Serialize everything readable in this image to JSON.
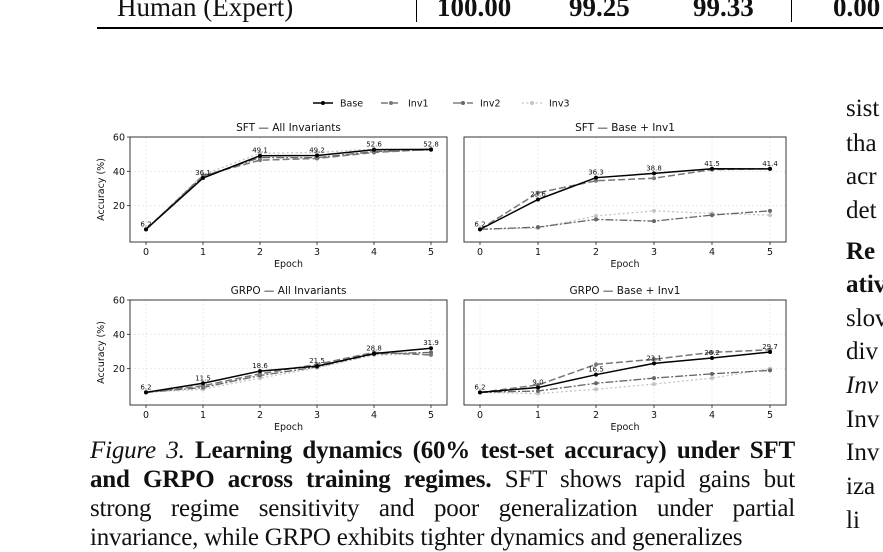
{
  "table_row": {
    "label": "Human (Expert)",
    "values": [
      "100.00",
      "99.25",
      "99.33",
      "0.00"
    ]
  },
  "legend": [
    "Base",
    "Inv1",
    "Inv2",
    "Inv3"
  ],
  "caption": {
    "fig_label": "Figure 3.",
    "bold": "Learning dynamics (60% test-set accuracy) under SFT and GRPO across training regimes.",
    "text": "SFT shows rapid gains but strong regime sensitivity and poor generalization under partial invariance, while GRPO exhibits tighter dynamics and generalizes"
  },
  "right_column": [
    "sist",
    "tha",
    "acr",
    "det",
    "Re",
    "ativ",
    "slov",
    "div",
    "Inv",
    "Inv",
    "Inv",
    "iza",
    "li"
  ],
  "chart_data": [
    {
      "type": "line",
      "title": "SFT — All Invariants",
      "xlabel": "Epoch",
      "ylabel": "Accuracy (%)",
      "x": [
        0,
        1,
        2,
        3,
        4,
        5
      ],
      "xlim": [
        0,
        5
      ],
      "ylim": [
        0,
        60
      ],
      "yticks": [
        20,
        40,
        60
      ],
      "grid": true,
      "series": [
        {
          "name": "Base",
          "values": [
            6.2,
            36.1,
            49.1,
            49.2,
            52.6,
            52.8
          ]
        },
        {
          "name": "Inv1",
          "values": [
            6.2,
            37.5,
            46.5,
            47.5,
            51.0,
            52.8
          ]
        },
        {
          "name": "Inv2",
          "values": [
            6.2,
            37.0,
            48.0,
            48.0,
            51.5,
            52.5
          ]
        },
        {
          "name": "Inv3",
          "values": [
            6.2,
            38.0,
            50.5,
            51.0,
            53.0,
            52.5
          ]
        }
      ],
      "data_labels": [
        "6.2",
        "36.1",
        "49.1",
        "49.2",
        "52.6",
        "52.8"
      ]
    },
    {
      "type": "line",
      "title": "SFT — Base + Inv1",
      "xlabel": "Epoch",
      "ylabel": "",
      "x": [
        0,
        1,
        2,
        3,
        4,
        5
      ],
      "xlim": [
        0,
        5
      ],
      "ylim": [
        0,
        60
      ],
      "yticks": [
        20,
        40,
        60
      ],
      "grid": true,
      "series": [
        {
          "name": "Base",
          "values": [
            6.2,
            23.6,
            36.3,
            38.8,
            41.5,
            41.4
          ]
        },
        {
          "name": "Inv1",
          "values": [
            6.2,
            27.5,
            34.5,
            36.0,
            41.0,
            41.5
          ]
        },
        {
          "name": "Inv2",
          "values": [
            6.2,
            7.5,
            12.0,
            11.0,
            14.5,
            17.0
          ]
        },
        {
          "name": "Inv3",
          "values": [
            6.2,
            7.0,
            14.0,
            17.0,
            15.5,
            14.5
          ]
        }
      ],
      "data_labels": [
        "6.2",
        "23.6",
        "36.3",
        "38.8",
        "41.5",
        "41.4"
      ]
    },
    {
      "type": "line",
      "title": "GRPO — All Invariants",
      "xlabel": "Epoch",
      "ylabel": "Accuracy (%)",
      "x": [
        0,
        1,
        2,
        3,
        4,
        5
      ],
      "xlim": [
        0,
        5
      ],
      "ylim": [
        0,
        60
      ],
      "yticks": [
        20,
        40,
        60
      ],
      "grid": true,
      "series": [
        {
          "name": "Base",
          "values": [
            6.2,
            11.5,
            18.6,
            21.5,
            28.8,
            31.9
          ]
        },
        {
          "name": "Inv1",
          "values": [
            6.2,
            10.0,
            17.0,
            22.5,
            29.5,
            28.0
          ]
        },
        {
          "name": "Inv2",
          "values": [
            6.2,
            9.0,
            16.0,
            21.0,
            28.5,
            29.5
          ]
        },
        {
          "name": "Inv3",
          "values": [
            6.2,
            8.0,
            14.5,
            20.5,
            28.0,
            28.5
          ]
        }
      ],
      "data_labels": [
        "6.2",
        "11.5",
        "18.6",
        "21.5",
        "28.8",
        "31.9"
      ]
    },
    {
      "type": "line",
      "title": "GRPO — Base + Inv1",
      "xlabel": "Epoch",
      "ylabel": "",
      "x": [
        0,
        1,
        2,
        3,
        4,
        5
      ],
      "xlim": [
        0,
        5
      ],
      "ylim": [
        0,
        60
      ],
      "yticks": [
        20,
        40,
        60
      ],
      "grid": true,
      "series": [
        {
          "name": "Base",
          "values": [
            6.2,
            9.0,
            16.5,
            23.1,
            26.2,
            29.7
          ]
        },
        {
          "name": "Inv1",
          "values": [
            6.2,
            10.5,
            22.5,
            25.5,
            29.5,
            31.0
          ]
        },
        {
          "name": "Inv2",
          "values": [
            6.2,
            7.0,
            11.5,
            14.5,
            17.0,
            19.0
          ]
        },
        {
          "name": "Inv3",
          "values": [
            6.2,
            5.5,
            8.0,
            11.0,
            14.5,
            20.0
          ]
        }
      ],
      "data_labels": [
        "6.2",
        "9.0",
        "16.5",
        "23.1",
        "26.2",
        "29.7"
      ]
    }
  ],
  "series_styles": [
    {
      "name": "Base",
      "color": "#000000",
      "dash": "",
      "width": 1.5
    },
    {
      "name": "Inv1",
      "color": "#777777",
      "dash": "7,3",
      "width": 1.5
    },
    {
      "name": "Inv2",
      "color": "#666666",
      "dash": "8,2,2,2",
      "width": 1.3
    },
    {
      "name": "Inv3",
      "color": "#c4c4c4",
      "dash": "2,2.5",
      "width": 1.3
    }
  ]
}
